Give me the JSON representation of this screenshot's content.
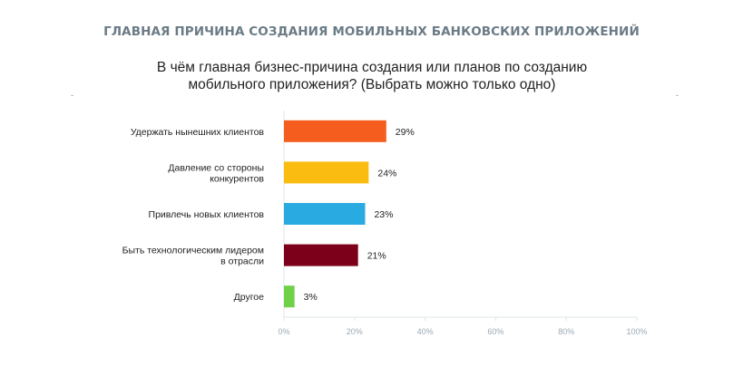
{
  "header": {
    "title": "ГЛАВНАЯ ПРИЧИНА СОЗДАНИЯ МОБИЛЬНЫХ БАНКОВСКИХ ПРИЛОЖЕНИЙ",
    "subtitle_line1": "В чём главная бизнес-причина создания или планов по созданию",
    "subtitle_line2": "мобильного приложения? (Выбрать можно только одно)"
  },
  "marks": {
    "left": "-",
    "right": "-"
  },
  "chart_data": {
    "type": "bar",
    "orientation": "horizontal",
    "categories": [
      [
        "Удержать нынешних клиентов"
      ],
      [
        "Давление со стороны",
        "конкурентов"
      ],
      [
        "Привлечь новых клиентов"
      ],
      [
        "Быть технологическим лидером",
        "в отрасли"
      ],
      [
        "Другое"
      ]
    ],
    "values": [
      29,
      24,
      23,
      21,
      3
    ],
    "value_labels": [
      "29%",
      "24%",
      "23%",
      "21%",
      "3%"
    ],
    "bar_colors": [
      "#f45d1e",
      "#fbbc12",
      "#29aae1",
      "#7c0019",
      "#6fd14a"
    ],
    "xlim": [
      0,
      100
    ],
    "ticks": [
      0,
      20,
      40,
      60,
      80,
      100
    ],
    "tick_labels": [
      "0%",
      "20%",
      "40%",
      "60%",
      "80%",
      "100%"
    ],
    "grid": false
  }
}
